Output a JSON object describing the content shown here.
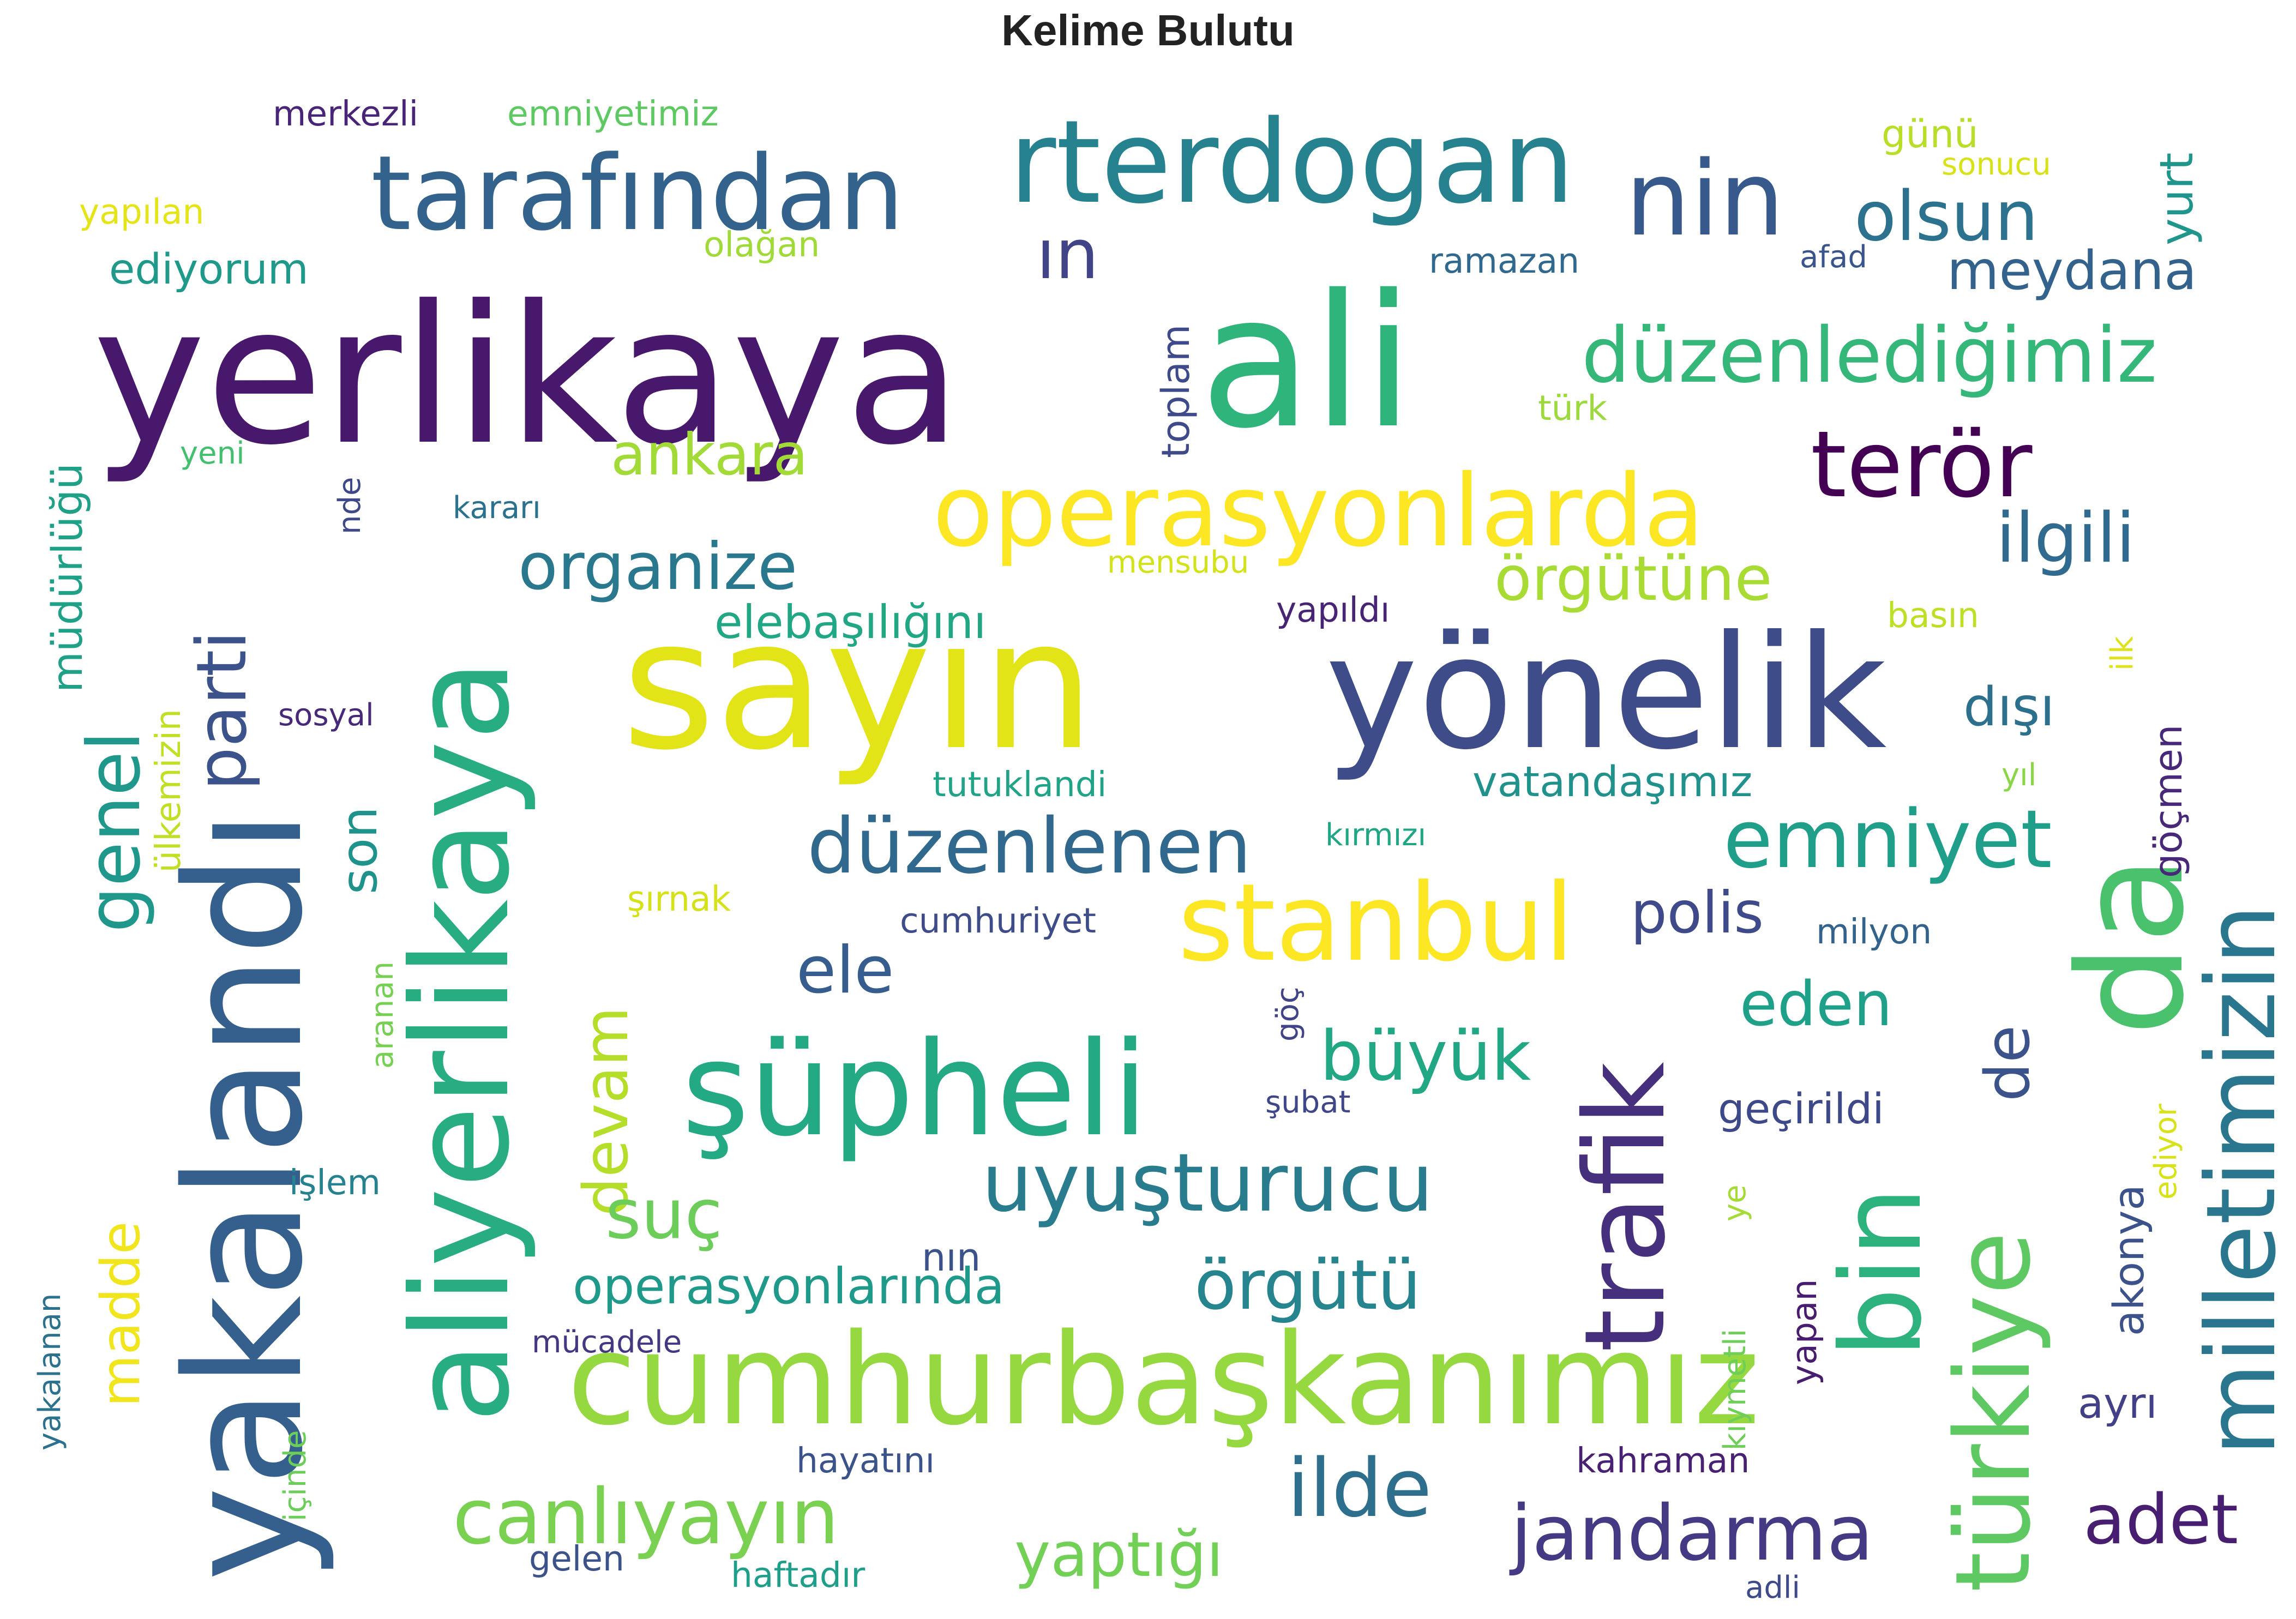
{
  "chart_data": {
    "type": "wordcloud",
    "title": "Kelime Bulutu",
    "words": [
      {
        "text": "yerlikaya",
        "weight": 100,
        "color": "#47186c",
        "rotate": 0
      },
      {
        "text": "ali",
        "weight": 96,
        "color": "#2fb47c",
        "rotate": 0
      },
      {
        "text": "sayın",
        "weight": 94,
        "color": "#e2e418",
        "rotate": 0
      },
      {
        "text": "yönelik",
        "weight": 82,
        "color": "#3e4c8a",
        "rotate": 0
      },
      {
        "text": "yakalandı",
        "weight": 84,
        "color": "#355f8d",
        "rotate": -90
      },
      {
        "text": "aliyerlikaya",
        "weight": 70,
        "color": "#27ad81",
        "rotate": -90
      },
      {
        "text": "şüpheli",
        "weight": 68,
        "color": "#23a983",
        "rotate": 0
      },
      {
        "text": "cumhurbaşkanımız",
        "weight": 66,
        "color": "#95d840",
        "rotate": 0
      },
      {
        "text": "rterdogan",
        "weight": 60,
        "color": "#26828e",
        "rotate": 0
      },
      {
        "text": "da",
        "weight": 76,
        "color": "#4ac16d",
        "rotate": -90
      },
      {
        "text": "nin",
        "weight": 54,
        "color": "#38598c",
        "rotate": 0
      },
      {
        "text": "tarafından",
        "weight": 54,
        "color": "#33638d",
        "rotate": 0
      },
      {
        "text": "operasyonlarda",
        "weight": 52,
        "color": "#fde725",
        "rotate": 0
      },
      {
        "text": "stanbul",
        "weight": 56,
        "color": "#fde725",
        "rotate": 0
      },
      {
        "text": "trafik",
        "weight": 58,
        "color": "#46307e",
        "rotate": -90
      },
      {
        "text": "bin",
        "weight": 58,
        "color": "#2db27d",
        "rotate": -90
      },
      {
        "text": "türkiye",
        "weight": 54,
        "color": "#5ec962",
        "rotate": -90
      },
      {
        "text": "milletimizin",
        "weight": 50,
        "color": "#2a768e",
        "rotate": -90
      },
      {
        "text": "terör",
        "weight": 48,
        "color": "#440154",
        "rotate": 0
      },
      {
        "text": "düzenlediğimiz",
        "weight": 40,
        "color": "#35b779",
        "rotate": 0
      },
      {
        "text": "uyuşturucu",
        "weight": 42,
        "color": "#287c8e",
        "rotate": 0
      },
      {
        "text": "düzenlenen",
        "weight": 40,
        "color": "#31688e",
        "rotate": 0
      },
      {
        "text": "emniyet",
        "weight": 42,
        "color": "#1f9e89",
        "rotate": 0
      },
      {
        "text": "canlıyayın",
        "weight": 40,
        "color": "#7ad151",
        "rotate": 0
      },
      {
        "text": "jandarma",
        "weight": 40,
        "color": "#443a83",
        "rotate": 0
      },
      {
        "text": "ilde",
        "weight": 42,
        "color": "#2e6f8e",
        "rotate": 0
      },
      {
        "text": "genel",
        "weight": 38,
        "color": "#1f988b",
        "rotate": -90
      },
      {
        "text": "parti",
        "weight": 36,
        "color": "#3b528b",
        "rotate": -90
      },
      {
        "text": "olsun",
        "weight": 36,
        "color": "#2c728e",
        "rotate": 0
      },
      {
        "text": "ın",
        "weight": 36,
        "color": "#414487",
        "rotate": 0
      },
      {
        "text": "organize",
        "weight": 34,
        "color": "#2a788e",
        "rotate": 0
      },
      {
        "text": "ilgili",
        "weight": 36,
        "color": "#306a8e",
        "rotate": 0
      },
      {
        "text": "örgütüne",
        "weight": 32,
        "color": "#a8db34",
        "rotate": 0
      },
      {
        "text": "devam",
        "weight": 32,
        "color": "#b5de2b",
        "rotate": -90
      },
      {
        "text": "suç",
        "weight": 36,
        "color": "#6ccd5a",
        "rotate": 0
      },
      {
        "text": "örgütü",
        "weight": 36,
        "color": "#25848e",
        "rotate": 0
      },
      {
        "text": "büyük",
        "weight": 36,
        "color": "#22a785",
        "rotate": 0
      },
      {
        "text": "ele",
        "weight": 34,
        "color": "#365d8d",
        "rotate": 0
      },
      {
        "text": "eden",
        "weight": 32,
        "color": "#1fa088",
        "rotate": 0
      },
      {
        "text": "de",
        "weight": 32,
        "color": "#3b528b",
        "rotate": -90
      },
      {
        "text": "adet",
        "weight": 36,
        "color": "#481f70",
        "rotate": 0
      },
      {
        "text": "yaptığı",
        "weight": 32,
        "color": "#73d056",
        "rotate": 0
      },
      {
        "text": "ankara",
        "weight": 30,
        "color": "#a2da37",
        "rotate": 0
      },
      {
        "text": "meydana",
        "weight": 28,
        "color": "#33638d",
        "rotate": 0
      },
      {
        "text": "polis",
        "weight": 30,
        "color": "#3e4a89",
        "rotate": 0
      },
      {
        "text": "dışı",
        "weight": 28,
        "color": "#2d708e",
        "rotate": 0
      },
      {
        "text": "madde",
        "weight": 28,
        "color": "#f1e51d",
        "rotate": -90
      },
      {
        "text": "son",
        "weight": 26,
        "color": "#20928c",
        "rotate": -90
      },
      {
        "text": "operasyonlarında",
        "weight": 26,
        "color": "#1f998a",
        "rotate": 0
      },
      {
        "text": "yurt",
        "weight": 24,
        "color": "#1f958b",
        "rotate": -90
      },
      {
        "text": "elebaşılığını",
        "weight": 24,
        "color": "#22a785",
        "rotate": 0
      },
      {
        "text": "müdürlüğü",
        "weight": 22,
        "color": "#1fa187",
        "rotate": -90
      },
      {
        "text": "ediyorum",
        "weight": 22,
        "color": "#1f9a8a",
        "rotate": 0
      },
      {
        "text": "vatandaşımız",
        "weight": 22,
        "color": "#21918c",
        "rotate": 0
      },
      {
        "text": "akonya",
        "weight": 22,
        "color": "#3b528b",
        "rotate": -90
      },
      {
        "text": "ayrı",
        "weight": 22,
        "color": "#424086",
        "rotate": 0
      },
      {
        "text": "geçirildi",
        "weight": 22,
        "color": "#3e4989",
        "rotate": 0
      },
      {
        "text": "toplam",
        "weight": 20,
        "color": "#3e4a89",
        "rotate": -90
      },
      {
        "text": "göçmen",
        "weight": 20,
        "color": "#482878",
        "rotate": -90
      },
      {
        "text": "cumhuriyet",
        "weight": 18,
        "color": "#3e4c8a",
        "rotate": 0
      },
      {
        "text": "milyon",
        "weight": 18,
        "color": "#33638d",
        "rotate": 0
      },
      {
        "text": "ülkemizin",
        "weight": 18,
        "color": "#c0df25",
        "rotate": -90
      },
      {
        "text": "merkezli",
        "weight": 18,
        "color": "#482576",
        "rotate": 0
      },
      {
        "text": "emniyetimiz",
        "weight": 18,
        "color": "#5ec962",
        "rotate": 0
      },
      {
        "text": "yapılan",
        "weight": 18,
        "color": "#e5e419",
        "rotate": 0
      },
      {
        "text": "olağan",
        "weight": 18,
        "color": "#a0da39",
        "rotate": 0
      },
      {
        "text": "günü",
        "weight": 20,
        "color": "#b8de29",
        "rotate": 0
      },
      {
        "text": "sonucu",
        "weight": 16,
        "color": "#d8e219",
        "rotate": 0
      },
      {
        "text": "ramazan",
        "weight": 18,
        "color": "#31688e",
        "rotate": 0
      },
      {
        "text": "afad",
        "weight": 16,
        "color": "#3a548c",
        "rotate": 0
      },
      {
        "text": "türk",
        "weight": 18,
        "color": "#9bd93c",
        "rotate": 0
      },
      {
        "text": "yeni",
        "weight": 16,
        "color": "#44bf70",
        "rotate": 0
      },
      {
        "text": "nde",
        "weight": 16,
        "color": "#3f4889",
        "rotate": -90
      },
      {
        "text": "kararı",
        "weight": 16,
        "color": "#2c728e",
        "rotate": 0
      },
      {
        "text": "mensubu",
        "weight": 16,
        "color": "#d2e21b",
        "rotate": 0
      },
      {
        "text": "yapıldı",
        "weight": 18,
        "color": "#482475",
        "rotate": 0
      },
      {
        "text": "basın",
        "weight": 18,
        "color": "#bddf26",
        "rotate": 0
      },
      {
        "text": "ilk",
        "weight": 16,
        "color": "#dde318",
        "rotate": -90
      },
      {
        "text": "sosyal",
        "weight": 16,
        "color": "#482878",
        "rotate": 0
      },
      {
        "text": "tutuklandi",
        "weight": 18,
        "color": "#20a386",
        "rotate": 0
      },
      {
        "text": "yıl",
        "weight": 16,
        "color": "#8bd646",
        "rotate": 0
      },
      {
        "text": "kırmızı",
        "weight": 16,
        "color": "#21a685",
        "rotate": 0
      },
      {
        "text": "şırnak",
        "weight": 18,
        "color": "#d5e21a",
        "rotate": 0
      },
      {
        "text": "aranan",
        "weight": 16,
        "color": "#75d054",
        "rotate": -90
      },
      {
        "text": "göç",
        "weight": 16,
        "color": "#414487",
        "rotate": -90
      },
      {
        "text": "şubat",
        "weight": 16,
        "color": "#3f4788",
        "rotate": 0
      },
      {
        "text": "işlem",
        "weight": 18,
        "color": "#26828e",
        "rotate": 0
      },
      {
        "text": "nın",
        "weight": 20,
        "color": "#3b528b",
        "rotate": 0
      },
      {
        "text": "mücadele",
        "weight": 16,
        "color": "#453781",
        "rotate": 0
      },
      {
        "text": "yakalanan",
        "weight": 16,
        "color": "#2c728e",
        "rotate": -90
      },
      {
        "text": "içinde",
        "weight": 16,
        "color": "#6ccd5a",
        "rotate": -90
      },
      {
        "text": "hayatını",
        "weight": 18,
        "color": "#3b528b",
        "rotate": 0
      },
      {
        "text": "kahraman",
        "weight": 18,
        "color": "#482173",
        "rotate": 0
      },
      {
        "text": "gelen",
        "weight": 18,
        "color": "#3b528b",
        "rotate": 0
      },
      {
        "text": "haftadır",
        "weight": 18,
        "color": "#1f9e89",
        "rotate": 0
      },
      {
        "text": "adli",
        "weight": 16,
        "color": "#3e4a89",
        "rotate": 0
      },
      {
        "text": "kıymetli",
        "weight": 16,
        "color": "#6ece58",
        "rotate": -90
      },
      {
        "text": "ye",
        "weight": 16,
        "color": "#a5db36",
        "rotate": -90
      },
      {
        "text": "yapan",
        "weight": 18,
        "color": "#481c6e",
        "rotate": -90
      },
      {
        "text": "ediyor",
        "weight": 16,
        "color": "#d8e219",
        "rotate": -90
      }
    ]
  }
}
